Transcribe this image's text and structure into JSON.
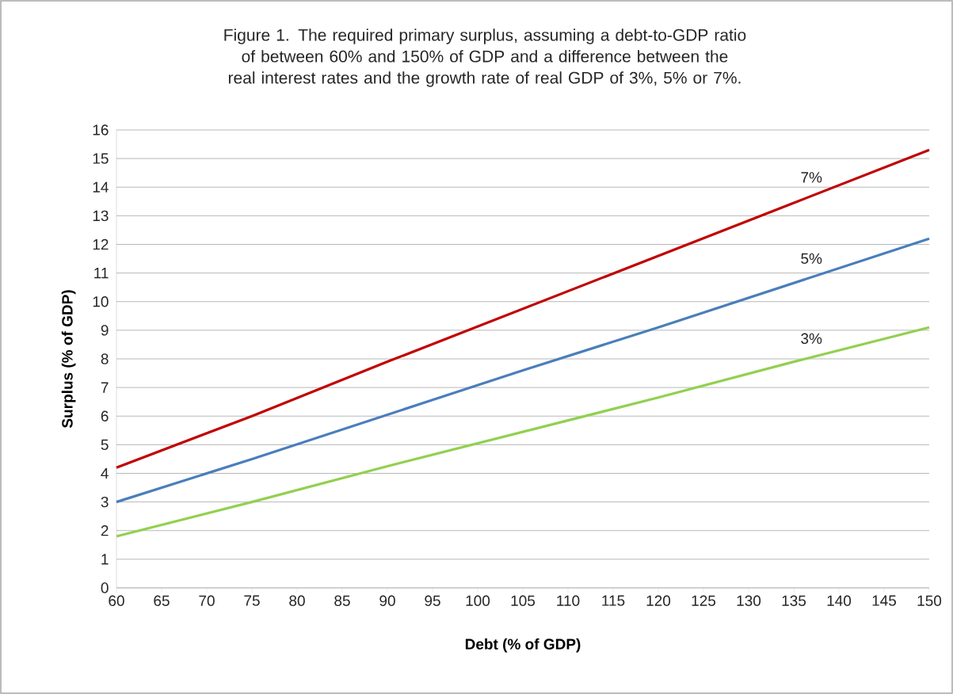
{
  "chart_data": {
    "type": "line",
    "title": "Figure 1. The required primary surplus, assuming a debt-to-GDP ratio of between 60% and 150% of GDP and a difference between the real interest rates and the growth rate of real GDP of 3%, 5% or 7%.",
    "xlabel": "Debt (% of GDP)",
    "ylabel": "Surplus (% of GDP)",
    "x": [
      60,
      75,
      90,
      105,
      120,
      135,
      150
    ],
    "series": [
      {
        "name": "7%",
        "color": "#c00000",
        "values": [
          4.2,
          6.0,
          7.9,
          9.75,
          11.6,
          13.45,
          15.3
        ]
      },
      {
        "name": "5%",
        "color": "#4a7ebb",
        "values": [
          3.0,
          4.5,
          6.05,
          7.6,
          9.1,
          10.65,
          12.2
        ]
      },
      {
        "name": "3%",
        "color": "#92d050",
        "values": [
          1.8,
          3.0,
          4.25,
          5.45,
          6.65,
          7.9,
          9.1
        ]
      }
    ],
    "xlim": [
      60,
      150
    ],
    "ylim": [
      0,
      16
    ],
    "xticks": [
      60,
      65,
      70,
      75,
      80,
      85,
      90,
      95,
      100,
      105,
      110,
      115,
      120,
      125,
      130,
      135,
      140,
      145,
      150
    ],
    "yticks": [
      0,
      1,
      2,
      3,
      4,
      5,
      6,
      7,
      8,
      9,
      10,
      11,
      12,
      13,
      14,
      15,
      16
    ],
    "grid": "y",
    "legend": false,
    "marker": "none",
    "line_style": "solid"
  }
}
